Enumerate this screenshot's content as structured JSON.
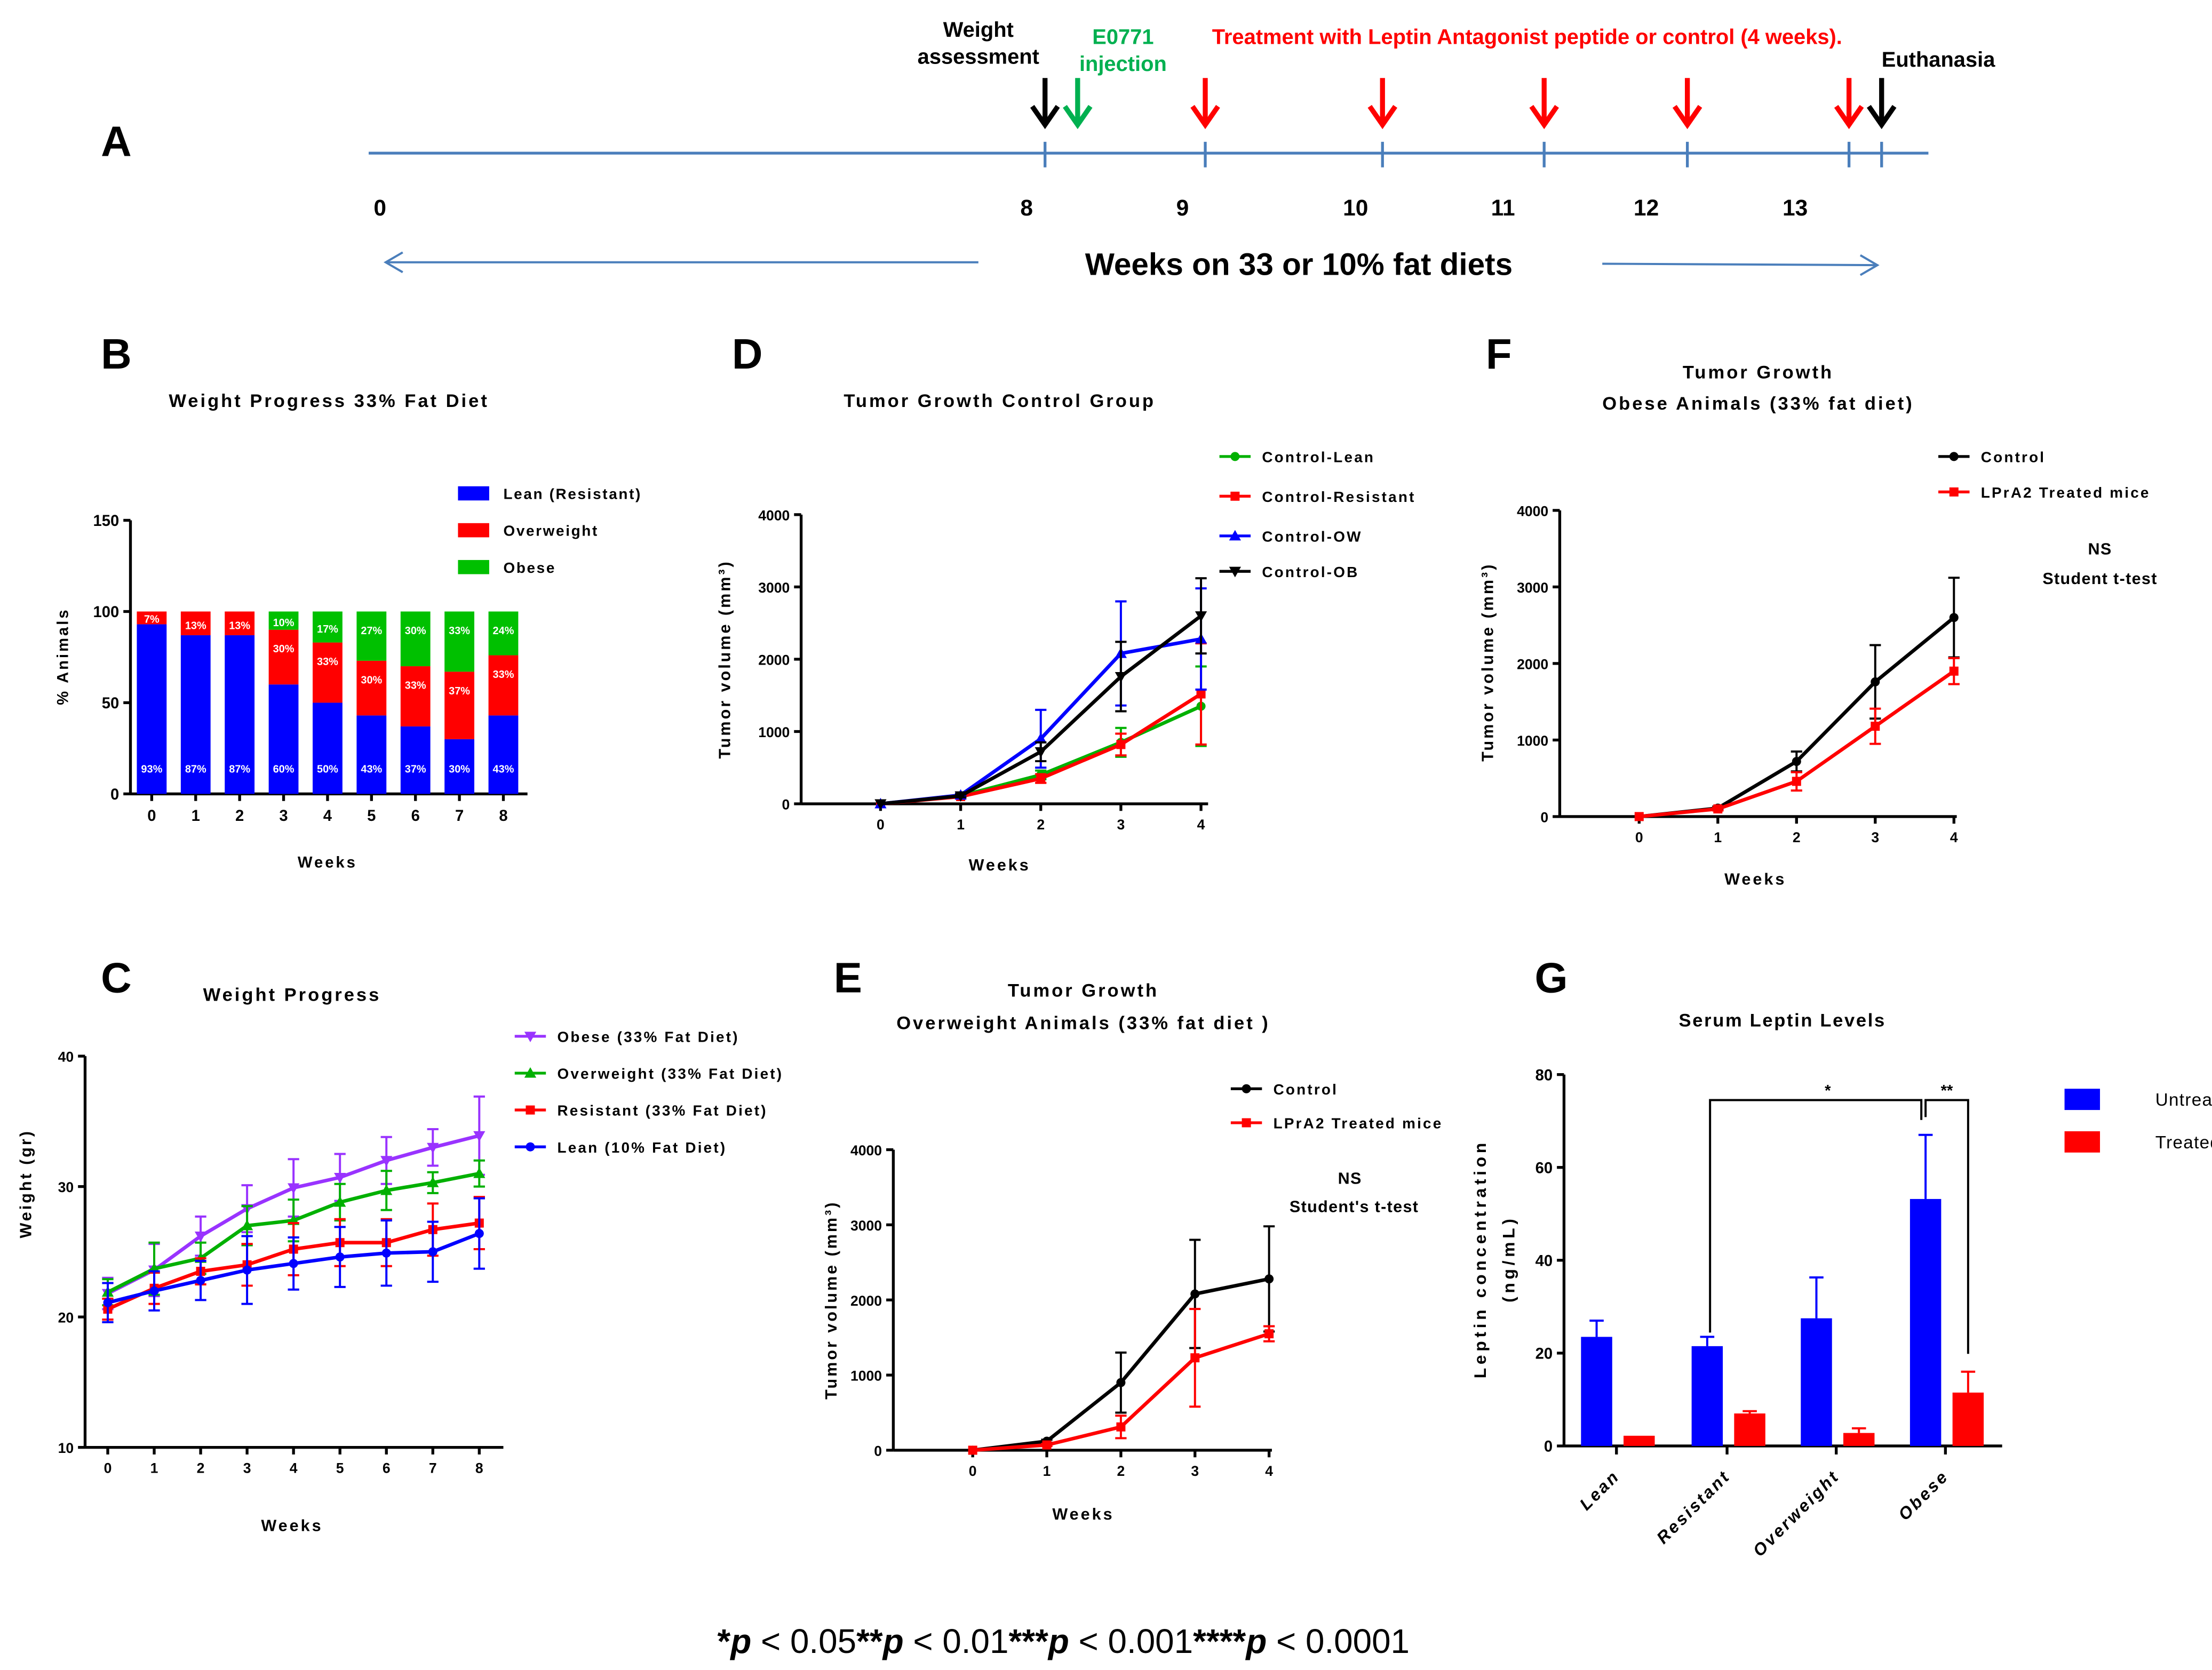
{
  "panel_labels": {
    "A": "A",
    "B": "B",
    "C": "C",
    "D": "D",
    "E": "E",
    "F": "F",
    "G": "G"
  },
  "timeline": {
    "week_labels": [
      "0",
      "8",
      "9",
      "10",
      "11",
      "12",
      "13"
    ],
    "weight_assessment": [
      "Weight",
      "assessment"
    ],
    "injection": [
      "E0771",
      "injection"
    ],
    "treatment": "Treatment with Leptin Antagonist peptide or control (4 weeks).",
    "euthanasia": "Euthanasia",
    "caption": "Weeks on 33 or 10% fat diets",
    "colors": {
      "line": "#4a7ebb",
      "assessment": "#000000",
      "injection": "#00b050",
      "treatment": "#ff0000",
      "euthanasia": "#000000"
    }
  },
  "chart_data": [
    {
      "panel": "B",
      "type": "bar",
      "stacked": true,
      "title": "Weight Progress 33% Fat Diet",
      "xlabel": "Weeks",
      "ylabel": "% Animals",
      "categories": [
        "0",
        "1",
        "2",
        "3",
        "4",
        "5",
        "6",
        "7",
        "8"
      ],
      "ylim": [
        0,
        150
      ],
      "yticks": [
        "0",
        "50",
        "100",
        "150"
      ],
      "legend": "top-right",
      "series": [
        {
          "name": "Lean (Resistant)",
          "color": "#0000ff",
          "values": [
            93,
            87,
            87,
            60,
            50,
            43,
            37,
            30,
            43
          ],
          "labels": [
            "93%",
            "87%",
            "87%",
            "60%",
            "50%",
            "43%",
            "37%",
            "30%",
            "43%"
          ]
        },
        {
          "name": "Overweight",
          "color": "#ff0000",
          "values": [
            7,
            13,
            13,
            30,
            33,
            30,
            33,
            37,
            33
          ],
          "labels": [
            "7%",
            "13%",
            "13%",
            "30%",
            "33%",
            "30%",
            "33%",
            "37%",
            "33%"
          ]
        },
        {
          "name": "Obese",
          "color": "#00c000",
          "values": [
            0,
            0,
            0,
            10,
            17,
            27,
            30,
            33,
            24
          ],
          "labels": [
            "",
            "",
            "",
            "10%",
            "17%",
            "27%",
            "30%",
            "33%",
            "24%"
          ]
        }
      ]
    },
    {
      "panel": "C",
      "type": "line",
      "title": [
        "Weight Progress"
      ],
      "xlabel": "Weeks",
      "ylabel": "Weight (gr)",
      "x": [
        0,
        1,
        2,
        3,
        4,
        5,
        6,
        7,
        8
      ],
      "xticks": [
        "0",
        "1",
        "2",
        "3",
        "4",
        "5",
        "6",
        "7",
        "8"
      ],
      "ylim": [
        10,
        40
      ],
      "yticks": [
        "10",
        "20",
        "30",
        "40"
      ],
      "legend": "top-right",
      "series": [
        {
          "name": "Obese (33% Fat Diet)",
          "color": "#9933ff",
          "marker": "triangle-down",
          "values": [
            21.8,
            23.6,
            26.2,
            28.3,
            29.9,
            30.7,
            32.0,
            33.0,
            33.9
          ],
          "error": [
            1.2,
            2.0,
            1.5,
            1.8,
            2.2,
            1.8,
            1.8,
            1.4,
            3.0
          ]
        },
        {
          "name": "Overweight (33% Fat Diet)",
          "color": "#00b000",
          "marker": "triangle",
          "values": [
            21.9,
            23.7,
            24.5,
            27.0,
            27.4,
            28.8,
            29.7,
            30.3,
            31.0
          ],
          "error": [
            1.0,
            2.0,
            1.2,
            1.5,
            1.6,
            1.4,
            1.5,
            0.8,
            1.0
          ]
        },
        {
          "name": "Resistant (33% Fat Diet)",
          "color": "#ff0000",
          "marker": "square",
          "values": [
            20.6,
            22.2,
            23.5,
            24.0,
            25.2,
            25.7,
            25.7,
            26.7,
            27.2
          ],
          "error": [
            0.8,
            1.2,
            1.0,
            1.6,
            2.0,
            1.8,
            1.8,
            2.0,
            2.0
          ]
        },
        {
          "name": "Lean (10% Fat Diet)",
          "color": "#0000ff",
          "marker": "circle",
          "values": [
            21.1,
            22.0,
            22.8,
            23.6,
            24.1,
            24.6,
            24.9,
            25.0,
            26.4
          ],
          "error": [
            1.5,
            1.5,
            1.5,
            2.6,
            2.0,
            2.3,
            2.5,
            2.3,
            2.7
          ]
        }
      ]
    },
    {
      "panel": "D",
      "type": "line",
      "title": [
        "Tumor Growth Control Group"
      ],
      "xlabel": "Weeks",
      "ylabel": "Tumor volume (mm³)",
      "x": [
        0,
        1,
        2,
        3,
        4
      ],
      "xticks": [
        "0",
        "1",
        "2",
        "3",
        "4"
      ],
      "ylim": [
        0,
        4000
      ],
      "yticks": [
        "0",
        "1000",
        "2000",
        "3000",
        "4000"
      ],
      "legend": "top-right",
      "series": [
        {
          "name": "Control-Lean",
          "color": "#00b000",
          "marker": "circle",
          "values": [
            0,
            110,
            400,
            850,
            1350
          ],
          "error": [
            0,
            20,
            60,
            200,
            550
          ]
        },
        {
          "name": "Control-Resistant",
          "color": "#ff0000",
          "marker": "square",
          "values": [
            0,
            100,
            350,
            820,
            1520
          ],
          "error": [
            0,
            20,
            60,
            150,
            700
          ]
        },
        {
          "name": "Control-OW",
          "color": "#0000ff",
          "marker": "triangle",
          "values": [
            0,
            120,
            900,
            2080,
            2280
          ],
          "error": [
            0,
            20,
            400,
            720,
            700
          ]
        },
        {
          "name": "Control-OB",
          "color": "#000000",
          "marker": "triangle-down",
          "values": [
            0,
            110,
            720,
            1760,
            2600
          ],
          "error": [
            0,
            20,
            130,
            480,
            520
          ]
        }
      ]
    },
    {
      "panel": "E",
      "type": "line",
      "title": [
        "Tumor Growth",
        "Overweight Animals (33% fat diet )"
      ],
      "xlabel": "Weeks",
      "ylabel": "Tumor volume (mm³)",
      "x": [
        0,
        1,
        2,
        3,
        4
      ],
      "xticks": [
        "0",
        "1",
        "2",
        "3",
        "4"
      ],
      "ylim": [
        0,
        4000
      ],
      "yticks": [
        "0",
        "1000",
        "2000",
        "3000",
        "4000"
      ],
      "legend": "top-right",
      "notes": [
        "NS",
        "Student's t-test"
      ],
      "series": [
        {
          "name": "Control",
          "color": "#000000",
          "marker": "circle",
          "values": [
            0,
            120,
            900,
            2080,
            2280
          ],
          "error": [
            0,
            20,
            400,
            720,
            700
          ]
        },
        {
          "name": "LPrA2 Treated mice",
          "color": "#ff0000",
          "marker": "square",
          "values": [
            0,
            70,
            310,
            1230,
            1550
          ],
          "error": [
            0,
            15,
            150,
            650,
            100
          ]
        }
      ]
    },
    {
      "panel": "F",
      "type": "line",
      "title": [
        "Tumor Growth",
        "Obese Animals (33% fat diet)"
      ],
      "xlabel": "Weeks",
      "ylabel": "Tumor volume (mm³)",
      "x": [
        0,
        1,
        2,
        3,
        4
      ],
      "xticks": [
        "0",
        "1",
        "2",
        "3",
        "4"
      ],
      "ylim": [
        0,
        4000
      ],
      "yticks": [
        "0",
        "1000",
        "2000",
        "3000",
        "4000"
      ],
      "legend": "top-right",
      "notes": [
        "NS",
        "Student t-test"
      ],
      "series": [
        {
          "name": "Control",
          "color": "#000000",
          "marker": "circle",
          "values": [
            0,
            110,
            720,
            1760,
            2600
          ],
          "error": [
            0,
            20,
            130,
            480,
            520
          ]
        },
        {
          "name": "LPrA2 Treated mice",
          "color": "#ff0000",
          "marker": "square",
          "values": [
            0,
            100,
            460,
            1180,
            1900
          ],
          "error": [
            0,
            20,
            120,
            230,
            170
          ]
        }
      ]
    },
    {
      "panel": "G",
      "type": "bar",
      "grouped": true,
      "title": "Serum Leptin Levels",
      "xlabel": "",
      "ylabel": [
        "Leptin concentration",
        "(ng/mL)"
      ],
      "categories": [
        "Lean",
        "Resistant",
        "Overweight",
        "Obese"
      ],
      "ylim": [
        0,
        80
      ],
      "yticks": [
        "0",
        "20",
        "40",
        "60",
        "80"
      ],
      "legend": "right",
      "series": [
        {
          "name": "Untreated",
          "color": "#0000ff",
          "values": [
            23.5,
            21.5,
            27.5,
            53.2
          ],
          "error": [
            3.5,
            2.0,
            8.8,
            13.8
          ]
        },
        {
          "name": "Treated",
          "color": "#ff0000",
          "values": [
            2.2,
            7.0,
            2.8,
            11.5
          ],
          "error": [
            0,
            0.5,
            1.0,
            4.5
          ]
        }
      ],
      "annotations": [
        {
          "text": "*",
          "between": [
            "Resistant Untreated",
            "Obese Untreated"
          ]
        },
        {
          "text": "**",
          "between": [
            "Obese Untreated",
            "Obese Treated"
          ]
        }
      ]
    }
  ],
  "footer": [
    {
      "stars": "*",
      "p": "p",
      "rest": " < 0.05"
    },
    {
      "stars": "**",
      "p": "p",
      "rest": " < 0.01"
    },
    {
      "stars": "***",
      "p": "p",
      "rest": " < 0.001"
    },
    {
      "stars": "****",
      "p": "p",
      "rest": " < 0.0001"
    }
  ]
}
